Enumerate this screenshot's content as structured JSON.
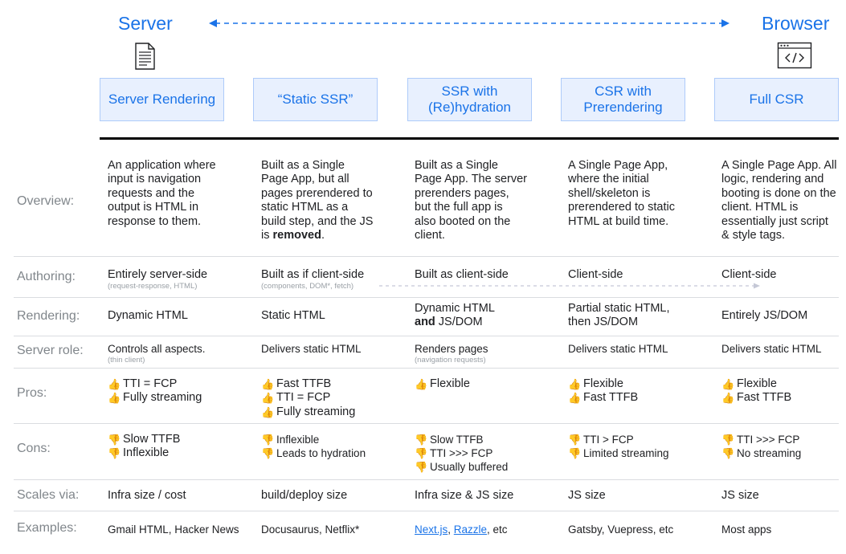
{
  "header": {
    "left_label": "Server",
    "right_label": "Browser",
    "arrow_icon": "double-arrow-icon",
    "server_icon": "document-icon",
    "browser_icon": "code-window-icon",
    "accent_color": "#1a73e8"
  },
  "columns": [
    {
      "title": "Server Rendering"
    },
    {
      "title": "“Static SSR”"
    },
    {
      "title": "SSR with\n(Re)hydration"
    },
    {
      "title": "CSR with\nPrerendering"
    },
    {
      "title": "Full CSR"
    }
  ],
  "rows": {
    "overview": {
      "label": "Overview:",
      "cells": [
        {
          "text": "An application where input is navigation requests and the output is HTML in response to them."
        },
        {
          "text": "Built as a Single Page App, but all pages prerendered to static HTML as a build step, and the JS is ",
          "bold": "removed",
          "tail": "."
        },
        {
          "text": "Built as a Single Page App. The server prerenders pages, but the full app is also booted on the client."
        },
        {
          "text": "A Single Page App, where the initial shell/skeleton is prerendered to static HTML at build time."
        },
        {
          "text": "A Single Page App. All logic, rendering and booting is done on the client. HTML is essentially just script & style tags."
        }
      ]
    },
    "authoring": {
      "label": "Authoring:",
      "cells": [
        {
          "text": "Entirely server-side",
          "sub": "(request-response, HTML)"
        },
        {
          "text": "Built as if client-side",
          "sub": "(components, DOM*, fetch)"
        },
        {
          "text": "Built as client-side"
        },
        {
          "text": "Client-side"
        },
        {
          "text": "Client-side"
        }
      ]
    },
    "rendering": {
      "label": "Rendering:",
      "cells": [
        {
          "text": "Dynamic HTML"
        },
        {
          "text": "Static HTML"
        },
        {
          "text": "Dynamic HTML",
          "bold": "and",
          "tail": " JS/DOM"
        },
        {
          "text": "Partial static HTML, then JS/DOM"
        },
        {
          "text": "Entirely JS/DOM"
        }
      ]
    },
    "server_role": {
      "label": "Server role:",
      "cells": [
        {
          "text": "Controls all aspects.",
          "sub": "(thin client)"
        },
        {
          "text": "Delivers static HTML"
        },
        {
          "text": "Renders pages",
          "sub": "(navigation requests)"
        },
        {
          "text": "Delivers static HTML"
        },
        {
          "text": "Delivers static HTML"
        }
      ]
    },
    "pros": {
      "label": "Pros:",
      "icon": "thumbs-up-icon",
      "cells": [
        [
          "TTI = FCP",
          "Fully streaming"
        ],
        [
          "Fast TTFB",
          "TTI = FCP",
          "Fully streaming"
        ],
        [
          "Flexible"
        ],
        [
          "Flexible",
          "Fast TTFB"
        ],
        [
          "Flexible",
          "Fast TTFB"
        ]
      ]
    },
    "cons": {
      "label": "Cons:",
      "icon": "thumbs-down-icon",
      "cells": [
        [
          "Slow TTFB",
          "Inflexible"
        ],
        [
          "Inflexible",
          "Leads to hydration"
        ],
        [
          "Slow TTFB",
          "TTI >>> FCP",
          "Usually buffered"
        ],
        [
          "TTI > FCP",
          "Limited streaming"
        ],
        [
          "TTI >>> FCP",
          "No streaming"
        ]
      ]
    },
    "scales": {
      "label": "Scales via:",
      "cells": [
        "Infra size / cost",
        "build/deploy size",
        "Infra size & JS size",
        "JS size",
        "JS size"
      ]
    },
    "examples": {
      "label": "Examples:",
      "cells": [
        {
          "text": "Gmail HTML, Hacker News"
        },
        {
          "text": "Docusaurus, Netflix*"
        },
        {
          "link1": "Next.js",
          "sep": ", ",
          "link2": "Razzle",
          "tail": ", etc"
        },
        {
          "text": "Gatsby, Vuepress, etc"
        },
        {
          "text": "Most apps"
        }
      ]
    }
  }
}
